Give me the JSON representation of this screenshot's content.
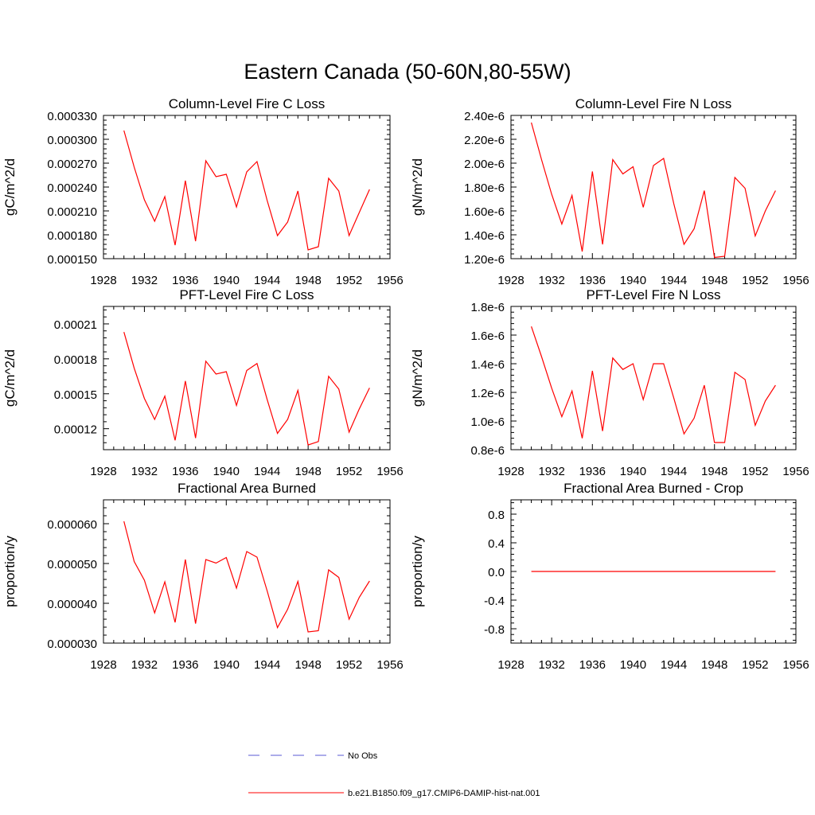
{
  "title": "Eastern Canada (50-60N,80-55W)",
  "colors": {
    "model": "#ff0000",
    "obs": "#5a5ad6",
    "axis": "#000000"
  },
  "legend": {
    "items": [
      {
        "label": "No Obs",
        "style": "dashed",
        "color": "#5a5ad6"
      },
      {
        "label": "b.e21.B1850.f09_g17.CMIP6-DAMIP-hist-nat.001",
        "style": "solid",
        "color": "#ff0000"
      }
    ]
  },
  "chart_data": [
    {
      "type": "line",
      "title": "Column-Level Fire C Loss",
      "ylabel": "gC/m^2/d",
      "xlim": [
        1928,
        1956
      ],
      "xticks": [
        1928,
        1932,
        1936,
        1940,
        1944,
        1948,
        1952,
        1956
      ],
      "ylim": [
        0.00015,
        0.00033
      ],
      "yticks": [
        0.00015,
        0.00018,
        0.00021,
        0.00024,
        0.00027,
        0.0003,
        0.00033
      ],
      "ytick_labels": [
        "0.000150",
        "0.000180",
        "0.000210",
        "0.000240",
        "0.000270",
        "0.000300",
        "0.000330"
      ],
      "series": [
        {
          "x": [
            1930,
            1931,
            1932,
            1933,
            1934,
            1935,
            1936,
            1937,
            1938,
            1939,
            1940,
            1941,
            1942,
            1943,
            1944,
            1945,
            1946,
            1947,
            1948,
            1949,
            1950,
            1951,
            1952,
            1953,
            1954
          ],
          "values": [
            0.000311,
            0.000265,
            0.000224,
            0.000197,
            0.000228,
            0.000167,
            0.000248,
            0.000172,
            0.000273,
            0.000253,
            0.000256,
            0.000215,
            0.000259,
            0.000272,
            0.000223,
            0.000179,
            0.000196,
            0.000235,
            0.000161,
            0.000165,
            0.000251,
            0.000235,
            0.000179,
            0.000208,
            0.000237
          ]
        }
      ]
    },
    {
      "type": "line",
      "title": "Column-Level Fire N Loss",
      "ylabel": "gN/m^2/d",
      "xlim": [
        1928,
        1956
      ],
      "xticks": [
        1928,
        1932,
        1936,
        1940,
        1944,
        1948,
        1952,
        1956
      ],
      "ylim": [
        1.2e-06,
        2.4e-06
      ],
      "yticks": [
        1.2e-06,
        1.4e-06,
        1.6e-06,
        1.8e-06,
        2e-06,
        2.2e-06,
        2.4e-06
      ],
      "ytick_labels": [
        "1.20e-6",
        "1.40e-6",
        "1.60e-6",
        "1.80e-6",
        "2.00e-6",
        "2.20e-6",
        "2.40e-6"
      ],
      "series": [
        {
          "x": [
            1930,
            1931,
            1932,
            1933,
            1934,
            1935,
            1936,
            1937,
            1938,
            1939,
            1940,
            1941,
            1942,
            1943,
            1944,
            1945,
            1946,
            1947,
            1948,
            1949,
            1950,
            1951,
            1952,
            1953,
            1954
          ],
          "values": [
            2.34e-06,
            2.03e-06,
            1.74e-06,
            1.49e-06,
            1.73e-06,
            1.26e-06,
            1.93e-06,
            1.32e-06,
            2.03e-06,
            1.91e-06,
            1.97e-06,
            1.63e-06,
            1.98e-06,
            2.04e-06,
            1.66e-06,
            1.32e-06,
            1.45e-06,
            1.77e-06,
            1.21e-06,
            1.22e-06,
            1.88e-06,
            1.79e-06,
            1.39e-06,
            1.6e-06,
            1.77e-06
          ]
        }
      ]
    },
    {
      "type": "line",
      "title": "PFT-Level Fire C Loss",
      "ylabel": "gC/m^2/d",
      "xlim": [
        1928,
        1956
      ],
      "xticks": [
        1928,
        1932,
        1936,
        1940,
        1944,
        1948,
        1952,
        1956
      ],
      "ylim": [
        0.000102,
        0.000225
      ],
      "yticks": [
        0.00012,
        0.00015,
        0.00018,
        0.00021
      ],
      "ytick_labels": [
        "0.00012",
        "0.00015",
        "0.00018",
        "0.00021"
      ],
      "series": [
        {
          "x": [
            1930,
            1931,
            1932,
            1933,
            1934,
            1935,
            1936,
            1937,
            1938,
            1939,
            1940,
            1941,
            1942,
            1943,
            1944,
            1945,
            1946,
            1947,
            1948,
            1949,
            1950,
            1951,
            1952,
            1953,
            1954
          ],
          "values": [
            0.000203,
            0.000172,
            0.000146,
            0.000128,
            0.000148,
            0.00011,
            0.000161,
            0.000112,
            0.000178,
            0.000167,
            0.000169,
            0.00014,
            0.00017,
            0.000176,
            0.000145,
            0.000116,
            0.000128,
            0.000153,
            0.000106,
            0.000109,
            0.000165,
            0.000154,
            0.000117,
            0.000137,
            0.000155
          ]
        }
      ]
    },
    {
      "type": "line",
      "title": "PFT-Level Fire N Loss",
      "ylabel": "gN/m^2/d",
      "xlim": [
        1928,
        1956
      ],
      "xticks": [
        1928,
        1932,
        1936,
        1940,
        1944,
        1948,
        1952,
        1956
      ],
      "ylim": [
        8e-07,
        1.8e-06
      ],
      "yticks": [
        8e-07,
        1e-06,
        1.2e-06,
        1.4e-06,
        1.6e-06,
        1.8e-06
      ],
      "ytick_labels": [
        "0.8e-6",
        "1.0e-6",
        "1.2e-6",
        "1.4e-6",
        "1.6e-6",
        "1.8e-6"
      ],
      "series": [
        {
          "x": [
            1930,
            1931,
            1932,
            1933,
            1934,
            1935,
            1936,
            1937,
            1938,
            1939,
            1940,
            1941,
            1942,
            1943,
            1944,
            1945,
            1946,
            1947,
            1948,
            1949,
            1950,
            1951,
            1952,
            1953,
            1954
          ],
          "values": [
            1.66e-06,
            1.45e-06,
            1.23e-06,
            1.03e-06,
            1.21e-06,
            8.8e-07,
            1.35e-06,
            9.3e-07,
            1.44e-06,
            1.36e-06,
            1.4e-06,
            1.15e-06,
            1.4e-06,
            1.4e-06,
            1.16e-06,
            9.1e-07,
            1.02e-06,
            1.25e-06,
            8.5e-07,
            8.5e-07,
            1.34e-06,
            1.29e-06,
            9.7e-07,
            1.14e-06,
            1.25e-06
          ]
        }
      ]
    },
    {
      "type": "line",
      "title": "Fractional Area Burned",
      "ylabel": "proportion/y",
      "xlim": [
        1928,
        1956
      ],
      "xticks": [
        1928,
        1932,
        1936,
        1940,
        1944,
        1948,
        1952,
        1956
      ],
      "ylim": [
        3e-05,
        6.6e-05
      ],
      "yticks": [
        3e-05,
        4e-05,
        5e-05,
        6e-05
      ],
      "ytick_labels": [
        "0.000030",
        "0.000040",
        "0.000050",
        "0.000060"
      ],
      "series": [
        {
          "x": [
            1930,
            1931,
            1932,
            1933,
            1934,
            1935,
            1936,
            1937,
            1938,
            1939,
            1940,
            1941,
            1942,
            1943,
            1944,
            1945,
            1946,
            1947,
            1948,
            1949,
            1950,
            1951,
            1952,
            1953,
            1954
          ],
          "values": [
            6.06e-05,
            5.05e-05,
            4.58e-05,
            3.76e-05,
            4.54e-05,
            3.52e-05,
            5.1e-05,
            3.49e-05,
            5.1e-05,
            5.01e-05,
            5.15e-05,
            4.38e-05,
            5.3e-05,
            5.16e-05,
            4.31e-05,
            3.39e-05,
            3.85e-05,
            4.55e-05,
            3.28e-05,
            3.31e-05,
            4.84e-05,
            4.65e-05,
            3.6e-05,
            4.15e-05,
            4.56e-05
          ]
        }
      ]
    },
    {
      "type": "line",
      "title": "Fractional Area Burned - Crop",
      "ylabel": "proportion/y",
      "xlim": [
        1928,
        1956
      ],
      "xticks": [
        1928,
        1932,
        1936,
        1940,
        1944,
        1948,
        1952,
        1956
      ],
      "ylim": [
        -1.0,
        1.0
      ],
      "yticks": [
        -0.8,
        -0.4,
        0.0,
        0.4,
        0.8
      ],
      "ytick_labels": [
        "-0.8",
        "-0.4",
        "0.0",
        "0.4",
        "0.8"
      ],
      "series": [
        {
          "x": [
            1930,
            1931,
            1932,
            1933,
            1934,
            1935,
            1936,
            1937,
            1938,
            1939,
            1940,
            1941,
            1942,
            1943,
            1944,
            1945,
            1946,
            1947,
            1948,
            1949,
            1950,
            1951,
            1952,
            1953,
            1954
          ],
          "values": [
            0,
            0,
            0,
            0,
            0,
            0,
            0,
            0,
            0,
            0,
            0,
            0,
            0,
            0,
            0,
            0,
            0,
            0,
            0,
            0,
            0,
            0,
            0,
            0,
            0
          ]
        }
      ]
    }
  ]
}
